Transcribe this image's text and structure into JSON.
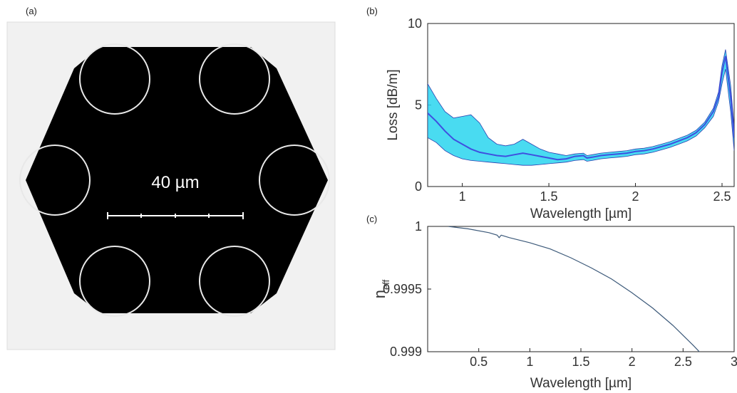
{
  "panels": {
    "a": {
      "tag": "(a)",
      "scale_bar_label": "40 µm",
      "colors": {
        "background": "#f2f2f2",
        "core": "#000000",
        "tube": "#e6e6e6"
      }
    },
    "b": {
      "tag": "(b)"
    },
    "c": {
      "tag": "(c)"
    }
  },
  "chart_data": [
    {
      "panel": "b",
      "type": "line",
      "xlabel": "Wavelength [µm]",
      "ylabel": "Loss [dB/m]",
      "xlim": [
        0.8,
        2.57
      ],
      "ylim": [
        0,
        10
      ],
      "xticks": [
        1,
        1.5,
        2,
        2.5
      ],
      "yticks": [
        0,
        5,
        10
      ],
      "series": [
        {
          "role": "mean",
          "color": "#3f4fe0",
          "x": [
            0.8,
            0.85,
            0.9,
            0.95,
            1.0,
            1.05,
            1.1,
            1.15,
            1.2,
            1.25,
            1.3,
            1.35,
            1.4,
            1.45,
            1.5,
            1.55,
            1.6,
            1.65,
            1.7,
            1.72,
            1.75,
            1.8,
            1.85,
            1.9,
            1.95,
            2.0,
            2.05,
            2.1,
            2.15,
            2.2,
            2.25,
            2.3,
            2.35,
            2.4,
            2.45,
            2.48,
            2.5,
            2.52,
            2.55,
            2.57
          ],
          "y": [
            4.5,
            4.0,
            3.4,
            2.9,
            2.6,
            2.3,
            2.1,
            2.0,
            1.9,
            1.85,
            1.95,
            2.05,
            1.95,
            1.85,
            1.75,
            1.65,
            1.7,
            1.85,
            1.9,
            1.75,
            1.8,
            1.9,
            1.95,
            2.0,
            2.05,
            2.15,
            2.2,
            2.3,
            2.45,
            2.6,
            2.8,
            3.0,
            3.3,
            3.8,
            4.6,
            5.5,
            7.0,
            8.0,
            5.5,
            3.0
          ]
        },
        {
          "role": "upper-bound",
          "color": "#29d5ef",
          "x": [
            0.8,
            0.85,
            0.9,
            0.95,
            1.0,
            1.05,
            1.1,
            1.15,
            1.2,
            1.25,
            1.3,
            1.35,
            1.4,
            1.45,
            1.5,
            1.55,
            1.6,
            1.65,
            1.7,
            1.72,
            1.75,
            1.8,
            1.85,
            1.9,
            1.95,
            2.0,
            2.05,
            2.1,
            2.15,
            2.2,
            2.25,
            2.3,
            2.35,
            2.4,
            2.45,
            2.48,
            2.5,
            2.52,
            2.55,
            2.57
          ],
          "y": [
            6.3,
            5.4,
            4.6,
            4.2,
            4.3,
            4.4,
            3.9,
            3.0,
            2.6,
            2.5,
            2.6,
            2.9,
            2.6,
            2.3,
            2.1,
            2.0,
            1.9,
            2.0,
            2.05,
            1.9,
            1.95,
            2.05,
            2.1,
            2.15,
            2.2,
            2.3,
            2.35,
            2.45,
            2.6,
            2.75,
            2.95,
            3.15,
            3.45,
            3.95,
            4.8,
            5.8,
            7.4,
            8.4,
            6.2,
            3.6
          ]
        },
        {
          "role": "lower-bound",
          "color": "#29d5ef",
          "x": [
            0.8,
            0.85,
            0.9,
            0.95,
            1.0,
            1.05,
            1.1,
            1.15,
            1.2,
            1.25,
            1.3,
            1.35,
            1.4,
            1.45,
            1.5,
            1.55,
            1.6,
            1.65,
            1.7,
            1.72,
            1.75,
            1.8,
            1.85,
            1.9,
            1.95,
            2.0,
            2.05,
            2.1,
            2.15,
            2.2,
            2.25,
            2.3,
            2.35,
            2.4,
            2.45,
            2.48,
            2.5,
            2.52,
            2.55,
            2.57
          ],
          "y": [
            3.0,
            2.7,
            2.2,
            1.9,
            1.7,
            1.6,
            1.55,
            1.5,
            1.45,
            1.4,
            1.35,
            1.3,
            1.3,
            1.35,
            1.4,
            1.45,
            1.5,
            1.6,
            1.65,
            1.55,
            1.6,
            1.7,
            1.75,
            1.8,
            1.85,
            1.95,
            2.0,
            2.1,
            2.25,
            2.4,
            2.6,
            2.8,
            3.1,
            3.6,
            4.3,
            5.2,
            6.3,
            7.2,
            4.6,
            2.2
          ]
        }
      ]
    },
    {
      "panel": "c",
      "type": "line",
      "xlabel": "Wavelength [µm]",
      "ylabel": "n",
      "ylabel_subscript": "eff",
      "xlim": [
        0,
        3
      ],
      "ylim": [
        0.999,
        1
      ],
      "xticks": [
        0.5,
        1,
        1.5,
        2,
        2.5,
        3
      ],
      "yticks": [
        0.999,
        0.9995,
        1
      ],
      "ytick_labels": [
        "0.999",
        "0.9995",
        "1"
      ],
      "series": [
        {
          "color": "#3d5a7a",
          "x": [
            0.2,
            0.4,
            0.6,
            0.68,
            0.7,
            0.72,
            0.8,
            1.0,
            1.2,
            1.4,
            1.6,
            1.8,
            2.0,
            2.2,
            2.4,
            2.6,
            2.8,
            3.0
          ],
          "y": [
            1.0,
            0.99998,
            0.99995,
            0.99993,
            0.99991,
            0.99993,
            0.99991,
            0.99987,
            0.99982,
            0.99975,
            0.99967,
            0.99958,
            0.99947,
            0.99935,
            0.99921,
            0.99905,
            0.99888,
            0.99869
          ]
        }
      ]
    }
  ]
}
